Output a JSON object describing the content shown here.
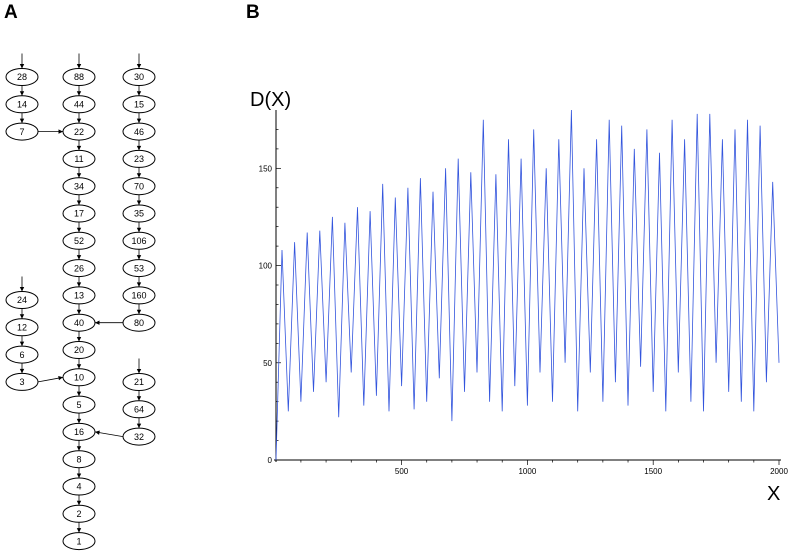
{
  "panels": {
    "a_label": "A",
    "b_label": "B"
  },
  "tree": {
    "columns": [
      {
        "nodes": [
          "28",
          "14",
          "7"
        ],
        "merge_into": "22"
      },
      {
        "nodes": [
          "88",
          "44",
          "22",
          "11",
          "34",
          "17",
          "52",
          "26",
          "13",
          "40",
          "20",
          "10",
          "5",
          "16",
          "8",
          "4",
          "2",
          "1"
        ]
      },
      {
        "nodes": [
          "30",
          "15",
          "46",
          "23",
          "70",
          "35",
          "106",
          "53",
          "160",
          "80"
        ],
        "merge_into": "40"
      },
      {
        "nodes": [
          "24",
          "12",
          "6",
          "3"
        ],
        "merge_into": "10"
      },
      {
        "nodes": [
          "21",
          "64",
          "32"
        ],
        "merge_into": "16"
      }
    ]
  },
  "chart_data": {
    "type": "line",
    "title": "",
    "xlabel": "X",
    "ylabel": "D(X)",
    "xlim": [
      1,
      2000
    ],
    "ylim": [
      0,
      180
    ],
    "x_ticks": [
      500,
      1000,
      1500,
      2000
    ],
    "y_ticks": [
      0,
      50,
      100,
      150
    ],
    "color": "#3355dd",
    "series": [
      {
        "x": [
          1,
          25,
          50,
          75,
          100,
          125,
          150,
          175,
          200,
          225,
          250,
          275,
          300,
          325,
          350,
          375,
          400,
          425,
          450,
          475,
          500,
          525,
          550,
          575,
          600,
          625,
          650,
          675,
          700,
          725,
          750,
          775,
          800,
          825,
          850,
          875,
          900,
          925,
          950,
          975,
          1000,
          1025,
          1050,
          1075,
          1100,
          1125,
          1150,
          1175,
          1200,
          1225,
          1250,
          1275,
          1300,
          1325,
          1350,
          1375,
          1400,
          1425,
          1450,
          1475,
          1500,
          1525,
          1550,
          1575,
          1600,
          1625,
          1650,
          1675,
          1700,
          1725,
          1750,
          1775,
          1800,
          1825,
          1850,
          1875,
          1900,
          1925,
          1950,
          1975,
          2000
        ],
        "y": [
          0,
          108,
          25,
          112,
          30,
          117,
          35,
          118,
          40,
          125,
          22,
          122,
          45,
          130,
          28,
          128,
          33,
          142,
          25,
          135,
          38,
          140,
          26,
          145,
          30,
          138,
          42,
          150,
          20,
          155,
          35,
          148,
          45,
          175,
          30,
          147,
          25,
          165,
          38,
          155,
          28,
          170,
          45,
          150,
          30,
          165,
          50,
          180,
          25,
          150,
          45,
          165,
          30,
          175,
          40,
          172,
          28,
          160,
          48,
          170,
          35,
          158,
          25,
          175,
          45,
          165,
          30,
          178,
          25,
          178,
          50,
          165,
          35,
          170,
          30,
          175,
          25,
          172,
          40,
          143,
          50
        ]
      }
    ]
  }
}
